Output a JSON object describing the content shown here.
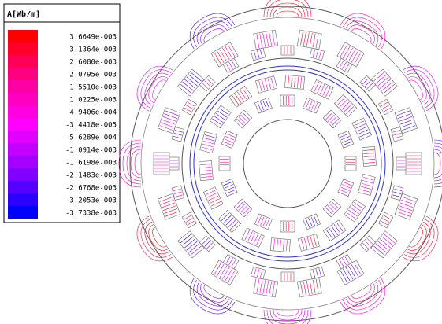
{
  "legend": {
    "title": "A[Wb/m]",
    "labels": [
      "3.6649e-003",
      "3.1364e-003",
      "2.6080e-003",
      "2.0795e-003",
      "1.5510e-003",
      "1.0225e-003",
      "4.9406e-004",
      "-3.4418e-005",
      "-5.6289e-004",
      "-1.0914e-003",
      "-1.6198e-003",
      "-2.1483e-003",
      "-2.6768e-003",
      "-3.2053e-003",
      "-3.7338e-003"
    ]
  }
}
